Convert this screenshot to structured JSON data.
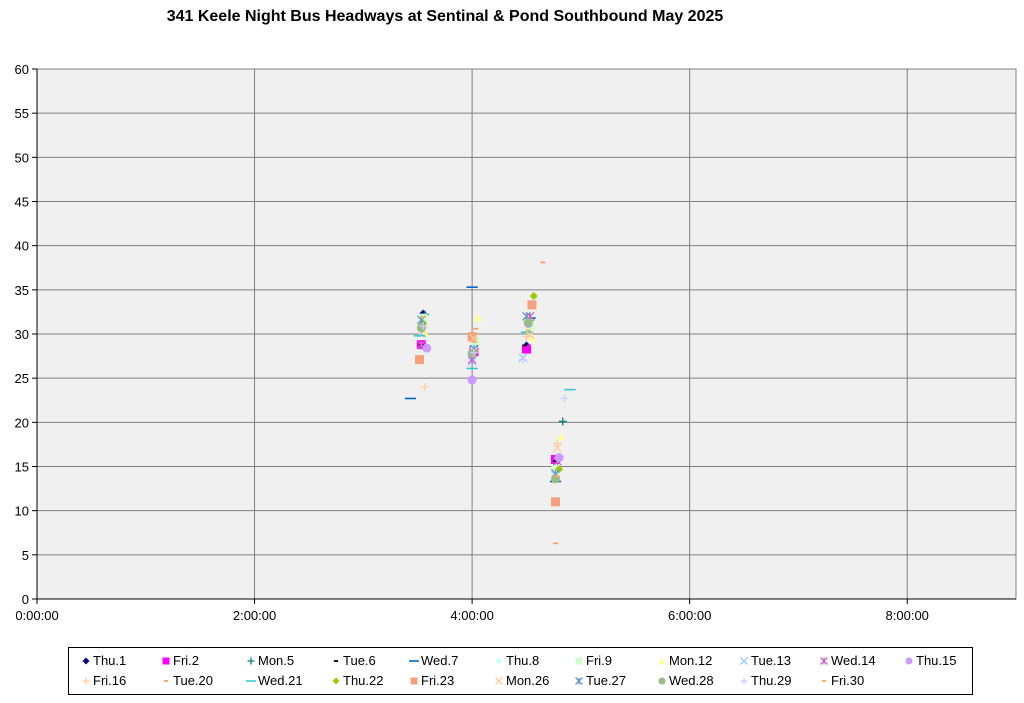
{
  "chart_data": {
    "type": "scatter",
    "title": "341 Keele Night Bus Headways at Sentinal & Pond Southbound May 2025",
    "xlabel": "",
    "ylabel": "",
    "x_ticks": [
      "0:00:00",
      "2:00:00",
      "4:00:00",
      "6:00:00",
      "8:00:00"
    ],
    "y_ticks": [
      "0",
      "5",
      "10",
      "15",
      "20",
      "25",
      "30",
      "35",
      "40",
      "45",
      "50",
      "55",
      "60"
    ],
    "xlim": [
      "0:00:00",
      "9:00:00"
    ],
    "ylim": [
      0,
      60
    ],
    "grid": true,
    "legend_position": "bottom",
    "series": [
      {
        "name": "Thu.1",
        "marker": "diamond",
        "color": "#000080",
        "points": [
          [
            "3:33",
            32.3
          ],
          [
            "3:32",
            28.7
          ],
          [
            "4:00",
            27.9
          ],
          [
            "4:30",
            28.7
          ],
          [
            "4:46",
            15.7
          ]
        ]
      },
      {
        "name": "Fri.2",
        "marker": "square",
        "color": "#ff00ff",
        "points": [
          [
            "3:32",
            28.8
          ],
          [
            "4:01",
            28.0
          ],
          [
            "4:30",
            28.3
          ],
          [
            "4:46",
            15.8
          ]
        ]
      },
      {
        "name": "Mon.5",
        "marker": "plus",
        "color": "#008080",
        "points": [
          [
            "3:34",
            32.2
          ],
          [
            "4:01",
            28.6
          ],
          [
            "4:32",
            31.5
          ],
          [
            "4:50",
            20.1
          ]
        ]
      },
      {
        "name": "Tue.6",
        "marker": "dash",
        "color": "#000000",
        "points": [
          [
            "3:32",
            28.7
          ],
          [
            "4:01",
            28.2
          ],
          [
            "4:29",
            28.7
          ],
          [
            "4:46",
            15.6
          ]
        ]
      },
      {
        "name": "Wed.7",
        "marker": "hline",
        "color": "#0066cc",
        "points": [
          [
            "3:26",
            22.7
          ],
          [
            "4:00",
            35.3
          ],
          [
            "4:32",
            31.8
          ],
          [
            "4:46",
            13.3
          ]
        ]
      },
      {
        "name": "Thu.8",
        "marker": "diamond",
        "color": "#ccffff",
        "points": [
          [
            "3:32",
            31.5
          ],
          [
            "4:01",
            28.4
          ],
          [
            "4:31",
            30.6
          ],
          [
            "4:47",
            14.5
          ]
        ]
      },
      {
        "name": "Fri.9",
        "marker": "square",
        "color": "#ccffcc",
        "points": [
          [
            "3:33",
            31.8
          ],
          [
            "4:02",
            29.2
          ],
          [
            "4:32",
            31.0
          ],
          [
            "4:46",
            14.7
          ]
        ]
      },
      {
        "name": "Mon.12",
        "marker": "triangle",
        "color": "#ffff99",
        "points": [
          [
            "3:34",
            30.2
          ],
          [
            "4:03",
            31.9
          ],
          [
            "4:33",
            29.6
          ],
          [
            "4:49",
            18.4
          ]
        ]
      },
      {
        "name": "Tue.13",
        "marker": "x",
        "color": "#99ccff",
        "points": [
          [
            "3:32",
            30.1
          ],
          [
            "4:00",
            26.9
          ],
          [
            "4:28",
            27.3
          ],
          [
            "4:46",
            14.0
          ]
        ]
      },
      {
        "name": "Wed.14",
        "marker": "star",
        "color": "#cc66cc",
        "points": [
          [
            "3:32",
            28.8
          ],
          [
            "4:00",
            27.1
          ],
          [
            "4:32",
            32.0
          ],
          [
            "4:47",
            15.6
          ]
        ]
      },
      {
        "name": "Thu.15",
        "marker": "circle",
        "color": "#cc99ff",
        "points": [
          [
            "3:35",
            28.4
          ],
          [
            "4:00",
            24.8
          ],
          [
            "4:31",
            31.2
          ],
          [
            "4:48",
            16.0
          ]
        ]
      },
      {
        "name": "Fri.16",
        "marker": "plus",
        "color": "#ffcc99",
        "points": [
          [
            "3:34",
            24.0
          ],
          [
            "4:02",
            28.1
          ],
          [
            "4:30",
            29.7
          ],
          [
            "4:47",
            17.6
          ]
        ]
      },
      {
        "name": "Tue.20",
        "marker": "dash",
        "color": "#ff9966",
        "points": [
          [
            "3:32",
            31.3
          ],
          [
            "4:02",
            30.6
          ],
          [
            "4:39",
            38.1
          ],
          [
            "4:46",
            6.3
          ]
        ]
      },
      {
        "name": "Wed.21",
        "marker": "hline",
        "color": "#33cccc",
        "points": [
          [
            "3:31",
            29.8
          ],
          [
            "4:00",
            26.1
          ],
          [
            "4:30",
            30.2
          ],
          [
            "4:54",
            23.7
          ]
        ]
      },
      {
        "name": "Thu.22",
        "marker": "diamond",
        "color": "#99cc00",
        "points": [
          [
            "3:33",
            31.2
          ],
          [
            "4:01",
            28.0
          ],
          [
            "4:34",
            34.3
          ],
          [
            "4:48",
            14.7
          ]
        ]
      },
      {
        "name": "Fri.23",
        "marker": "square",
        "color": "#f4a07c",
        "points": [
          [
            "3:31",
            27.1
          ],
          [
            "4:00",
            29.7
          ],
          [
            "4:33",
            33.3
          ],
          [
            "4:46",
            11.0
          ]
        ]
      },
      {
        "name": "Mon.26",
        "marker": "x",
        "color": "#ffcc99",
        "points": [
          [
            "3:33",
            30.4
          ],
          [
            "4:01",
            29.5
          ],
          [
            "4:32",
            29.9
          ],
          [
            "4:47",
            17.1
          ]
        ]
      },
      {
        "name": "Tue.27",
        "marker": "star",
        "color": "#6699cc",
        "points": [
          [
            "3:32",
            31.6
          ],
          [
            "4:01",
            28.3
          ],
          [
            "4:30",
            32.0
          ],
          [
            "4:46",
            14.2
          ]
        ]
      },
      {
        "name": "Wed.28",
        "marker": "circle",
        "color": "#99bb88",
        "points": [
          [
            "3:32",
            30.7
          ],
          [
            "4:00",
            27.8
          ],
          [
            "4:31",
            31.3
          ],
          [
            "4:46",
            13.6
          ]
        ]
      },
      {
        "name": "Thu.29",
        "marker": "plus",
        "color": "#ccccff",
        "points": [
          [
            "3:33",
            30.9
          ],
          [
            "4:01",
            27.9
          ],
          [
            "4:28",
            27.1
          ],
          [
            "4:51",
            22.7
          ]
        ]
      },
      {
        "name": "Fri.30",
        "marker": "dash",
        "color": "#ffaa66",
        "points": [
          [
            "3:33",
            31.9
          ],
          [
            "4:01",
            29.1
          ],
          [
            "4:31",
            30.4
          ],
          [
            "4:47",
            13.9
          ]
        ]
      }
    ]
  }
}
